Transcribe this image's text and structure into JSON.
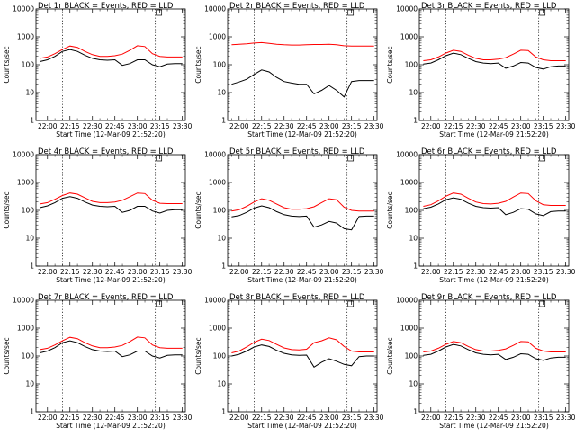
{
  "chart_data": [
    {
      "type": "line",
      "title": "Det 1r BLACK = Events, RED = LLD",
      "xlabel": "Start Time (12-Mar-09 21:52:20)",
      "ylabel": "Counts/sec",
      "x": [
        "21:55",
        "22:00",
        "22:05",
        "22:10",
        "22:15",
        "22:20",
        "22:25",
        "22:30",
        "22:35",
        "22:40",
        "22:45",
        "22:50",
        "22:55",
        "23:00",
        "23:05",
        "23:10",
        "23:15",
        "23:20",
        "23:25",
        "23:30"
      ],
      "series": [
        {
          "name": "LLD",
          "color": "#ff0000",
          "values": [
            170,
            190,
            250,
            350,
            470,
            420,
            300,
            230,
            200,
            200,
            210,
            240,
            330,
            480,
            450,
            250,
            200,
            190,
            190,
            190
          ]
        },
        {
          "name": "Events",
          "color": "#000000",
          "values": [
            130,
            150,
            200,
            300,
            350,
            300,
            220,
            170,
            150,
            145,
            150,
            95,
            110,
            150,
            150,
            100,
            85,
            105,
            110,
            110
          ]
        }
      ]
    },
    {
      "type": "line",
      "title": "Det 2r BLACK = Events, RED = LLD",
      "xlabel": "Start Time (12-Mar-09 21:52:20)",
      "ylabel": "Counts/sec",
      "x": [
        "21:55",
        "22:00",
        "22:05",
        "22:10",
        "22:15",
        "22:20",
        "22:25",
        "22:30",
        "22:35",
        "22:40",
        "22:45",
        "22:50",
        "22:55",
        "23:00",
        "23:05",
        "23:10",
        "23:15",
        "23:20",
        "23:25",
        "23:30"
      ],
      "series": [
        {
          "name": "LLD",
          "color": "#ff0000",
          "values": [
            520,
            540,
            560,
            600,
            620,
            580,
            540,
            520,
            510,
            510,
            520,
            530,
            530,
            540,
            520,
            480,
            470,
            470,
            470,
            470
          ]
        },
        {
          "name": "Events",
          "color": "#000000",
          "values": [
            20,
            24,
            30,
            45,
            65,
            55,
            35,
            25,
            22,
            20,
            20,
            9,
            12,
            18,
            12,
            7,
            25,
            27,
            27,
            27
          ]
        }
      ]
    },
    {
      "type": "line",
      "title": "Det 3r BLACK = Events, RED = LLD",
      "xlabel": "Start Time (12-Mar-09 21:52:20)",
      "ylabel": "Counts/sec",
      "x": [
        "21:55",
        "22:00",
        "22:05",
        "22:10",
        "22:15",
        "22:20",
        "22:25",
        "22:30",
        "22:35",
        "22:40",
        "22:45",
        "22:50",
        "22:55",
        "23:00",
        "23:05",
        "23:10",
        "23:15",
        "23:20",
        "23:25",
        "23:30"
      ],
      "series": [
        {
          "name": "LLD",
          "color": "#ff0000",
          "values": [
            140,
            150,
            190,
            260,
            330,
            300,
            220,
            170,
            150,
            150,
            160,
            180,
            240,
            330,
            320,
            190,
            150,
            140,
            140,
            140
          ]
        },
        {
          "name": "Events",
          "color": "#000000",
          "values": [
            105,
            115,
            150,
            210,
            260,
            230,
            170,
            130,
            115,
            110,
            115,
            75,
            90,
            120,
            115,
            80,
            70,
            85,
            90,
            90
          ]
        }
      ]
    },
    {
      "type": "line",
      "title": "Det 4r BLACK = Events, RED = LLD",
      "xlabel": "Start Time (12-Mar-09 21:52:20)",
      "ylabel": "Counts/sec",
      "x": [
        "21:55",
        "22:00",
        "22:05",
        "22:10",
        "22:15",
        "22:20",
        "22:25",
        "22:30",
        "22:35",
        "22:40",
        "22:45",
        "22:50",
        "22:55",
        "23:00",
        "23:05",
        "23:10",
        "23:15",
        "23:20",
        "23:25",
        "23:30"
      ],
      "series": [
        {
          "name": "LLD",
          "color": "#ff0000",
          "values": [
            170,
            190,
            250,
            340,
            420,
            380,
            280,
            210,
            190,
            190,
            200,
            230,
            310,
            420,
            400,
            230,
            180,
            175,
            175,
            175
          ]
        },
        {
          "name": "Events",
          "color": "#000000",
          "values": [
            125,
            145,
            190,
            270,
            310,
            270,
            200,
            155,
            140,
            135,
            140,
            85,
            100,
            140,
            140,
            95,
            80,
            100,
            105,
            105
          ]
        }
      ]
    },
    {
      "type": "line",
      "title": "Det 5r BLACK = Events, RED = LLD",
      "xlabel": "Start Time (12-Mar-09 21:52:20)",
      "ylabel": "Counts/sec",
      "x": [
        "21:55",
        "22:00",
        "22:05",
        "22:10",
        "22:15",
        "22:20",
        "22:25",
        "22:30",
        "22:35",
        "22:40",
        "22:45",
        "22:50",
        "22:55",
        "23:00",
        "23:05",
        "23:10",
        "23:15",
        "23:20",
        "23:25",
        "23:30"
      ],
      "series": [
        {
          "name": "LLD",
          "color": "#ff0000",
          "values": [
            95,
            105,
            140,
            200,
            260,
            230,
            170,
            125,
            110,
            110,
            115,
            135,
            190,
            260,
            240,
            130,
            100,
            95,
            95,
            95
          ]
        },
        {
          "name": "Events",
          "color": "#000000",
          "values": [
            58,
            65,
            85,
            120,
            145,
            125,
            90,
            70,
            62,
            60,
            62,
            25,
            30,
            40,
            35,
            22,
            20,
            60,
            62,
            62
          ]
        }
      ]
    },
    {
      "type": "line",
      "title": "Det 6r BLACK = Events, RED = LLD",
      "xlabel": "Start Time (12-Mar-09 21:52:20)",
      "ylabel": "Counts/sec",
      "x": [
        "21:55",
        "22:00",
        "22:05",
        "22:10",
        "22:15",
        "22:20",
        "22:25",
        "22:30",
        "22:35",
        "22:40",
        "22:45",
        "22:50",
        "22:55",
        "23:00",
        "23:05",
        "23:10",
        "23:15",
        "23:20",
        "23:25",
        "23:30"
      ],
      "series": [
        {
          "name": "LLD",
          "color": "#ff0000",
          "values": [
            140,
            160,
            220,
            320,
            420,
            380,
            270,
            200,
            175,
            170,
            180,
            210,
            300,
            420,
            400,
            220,
            160,
            150,
            150,
            150
          ]
        },
        {
          "name": "Events",
          "color": "#000000",
          "values": [
            115,
            130,
            170,
            240,
            280,
            250,
            180,
            140,
            125,
            120,
            125,
            70,
            85,
            115,
            110,
            75,
            65,
            90,
            95,
            95
          ]
        }
      ]
    },
    {
      "type": "line",
      "title": "Det 7r BLACK = Events, RED = LLD",
      "xlabel": "Start Time (12-Mar-09 21:52:20)",
      "ylabel": "Counts/sec",
      "x": [
        "21:55",
        "22:00",
        "22:05",
        "22:10",
        "22:15",
        "22:20",
        "22:25",
        "22:30",
        "22:35",
        "22:40",
        "22:45",
        "22:50",
        "22:55",
        "23:00",
        "23:05",
        "23:10",
        "23:15",
        "23:20",
        "23:25",
        "23:30"
      ],
      "series": [
        {
          "name": "LLD",
          "color": "#ff0000",
          "values": [
            170,
            190,
            250,
            350,
            470,
            420,
            300,
            230,
            200,
            200,
            210,
            240,
            330,
            480,
            450,
            250,
            200,
            190,
            190,
            190
          ]
        },
        {
          "name": "Events",
          "color": "#000000",
          "values": [
            130,
            150,
            200,
            300,
            350,
            300,
            220,
            170,
            150,
            145,
            150,
            95,
            110,
            150,
            150,
            100,
            85,
            105,
            110,
            110
          ]
        }
      ]
    },
    {
      "type": "line",
      "title": "Det 8r BLACK = Events, RED = LLD",
      "xlabel": "Start Time (12-Mar-09 21:52:20)",
      "ylabel": "Counts/sec",
      "x": [
        "21:55",
        "22:00",
        "22:05",
        "22:10",
        "22:15",
        "22:20",
        "22:25",
        "22:30",
        "22:35",
        "22:40",
        "22:45",
        "22:50",
        "22:55",
        "23:00",
        "23:05",
        "23:10",
        "23:15",
        "23:20",
        "23:25",
        "23:30"
      ],
      "series": [
        {
          "name": "LLD",
          "color": "#ff0000",
          "values": [
            130,
            150,
            210,
            310,
            400,
            360,
            260,
            195,
            170,
            165,
            175,
            300,
            350,
            450,
            380,
            220,
            150,
            140,
            140,
            140
          ]
        },
        {
          "name": "Events",
          "color": "#000000",
          "values": [
            100,
            115,
            150,
            210,
            250,
            220,
            160,
            125,
            110,
            105,
            108,
            40,
            60,
            80,
            65,
            50,
            45,
            95,
            100,
            100
          ]
        }
      ]
    },
    {
      "type": "line",
      "title": "Det 9r BLACK = Events, RED = LLD",
      "xlabel": "Start Time (12-Mar-09 21:52:20)",
      "ylabel": "Counts/sec",
      "x": [
        "21:55",
        "22:00",
        "22:05",
        "22:10",
        "22:15",
        "22:20",
        "22:25",
        "22:30",
        "22:35",
        "22:40",
        "22:45",
        "22:50",
        "22:55",
        "23:00",
        "23:05",
        "23:10",
        "23:15",
        "23:20",
        "23:25",
        "23:30"
      ],
      "series": [
        {
          "name": "LLD",
          "color": "#ff0000",
          "values": [
            140,
            150,
            190,
            260,
            330,
            300,
            220,
            170,
            150,
            150,
            160,
            180,
            240,
            330,
            320,
            190,
            150,
            140,
            140,
            140
          ]
        },
        {
          "name": "Events",
          "color": "#000000",
          "values": [
            105,
            115,
            150,
            210,
            260,
            230,
            170,
            130,
            115,
            110,
            115,
            75,
            90,
            120,
            115,
            80,
            70,
            85,
            90,
            90
          ]
        }
      ]
    }
  ],
  "axes": {
    "x_ticks": [
      "22:00",
      "22:15",
      "22:30",
      "22:45",
      "23:00",
      "23:15",
      "23:30"
    ],
    "y_ticks": [
      "1",
      "10",
      "100",
      "1000",
      "10000"
    ],
    "y_scale": "log",
    "ylim": [
      1,
      10000
    ],
    "xlim": [
      "21:52:20",
      "23:32:00"
    ],
    "vlines": [
      "22:10",
      "23:12"
    ]
  }
}
